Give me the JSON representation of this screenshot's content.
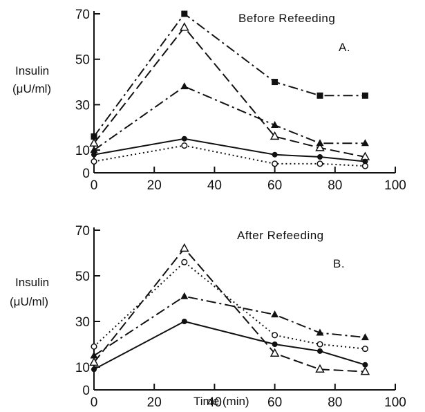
{
  "chart_data": [
    {
      "type": "line",
      "title": "Before Refeeding",
      "panel_label": "A.",
      "ylabel_line1": "Insulin",
      "ylabel_line2": "(μU/ml)",
      "xlabel": "",
      "xlim": [
        0,
        100
      ],
      "ylim": [
        0,
        70
      ],
      "xticks": [
        0,
        20,
        40,
        60,
        80,
        100
      ],
      "yticks": [
        0,
        10,
        30,
        50,
        70
      ],
      "grid": false,
      "series": [
        {
          "marker": "filled-square",
          "dash": "dash-dot",
          "x": [
            0,
            30,
            60,
            75,
            90
          ],
          "y": [
            16,
            70,
            40,
            34,
            34
          ]
        },
        {
          "marker": "open-triangle",
          "dash": "dashed",
          "x": [
            0,
            30,
            60,
            75,
            90
          ],
          "y": [
            13,
            64,
            16,
            11,
            7
          ]
        },
        {
          "marker": "filled-triangle",
          "dash": "dash-dot",
          "x": [
            0,
            30,
            60,
            75,
            90
          ],
          "y": [
            10,
            38,
            21,
            13,
            13
          ]
        },
        {
          "marker": "filled-circle",
          "dash": "solid",
          "x": [
            0,
            30,
            60,
            75,
            90
          ],
          "y": [
            8,
            15,
            8,
            7,
            5
          ]
        },
        {
          "marker": "open-circle",
          "dash": "dotted",
          "x": [
            0,
            30,
            60,
            75,
            90
          ],
          "y": [
            5,
            12,
            4,
            4,
            3
          ]
        }
      ]
    },
    {
      "type": "line",
      "title": "After Refeeding",
      "panel_label": "B.",
      "ylabel_line1": "Insulin",
      "ylabel_line2": "(μU/ml)",
      "xlabel": "Time (min)",
      "xlim": [
        0,
        100
      ],
      "ylim": [
        0,
        70
      ],
      "xticks": [
        0,
        20,
        40,
        60,
        80,
        100
      ],
      "yticks": [
        0,
        10,
        30,
        50,
        70
      ],
      "grid": false,
      "series": [
        {
          "marker": "open-triangle",
          "dash": "dashed",
          "x": [
            0,
            30,
            60,
            75,
            90
          ],
          "y": [
            12,
            62,
            16,
            9,
            8
          ]
        },
        {
          "marker": "open-circle",
          "dash": "dotted",
          "x": [
            0,
            30,
            60,
            75,
            90
          ],
          "y": [
            19,
            56,
            24,
            20,
            18
          ]
        },
        {
          "marker": "filled-triangle",
          "dash": "dash-dot",
          "x": [
            0,
            30,
            60,
            75,
            90
          ],
          "y": [
            15,
            41,
            33,
            25,
            23
          ]
        },
        {
          "marker": "filled-circle",
          "dash": "solid",
          "x": [
            0,
            30,
            60,
            75,
            90
          ],
          "y": [
            9,
            30,
            20,
            17,
            11
          ]
        }
      ]
    }
  ]
}
